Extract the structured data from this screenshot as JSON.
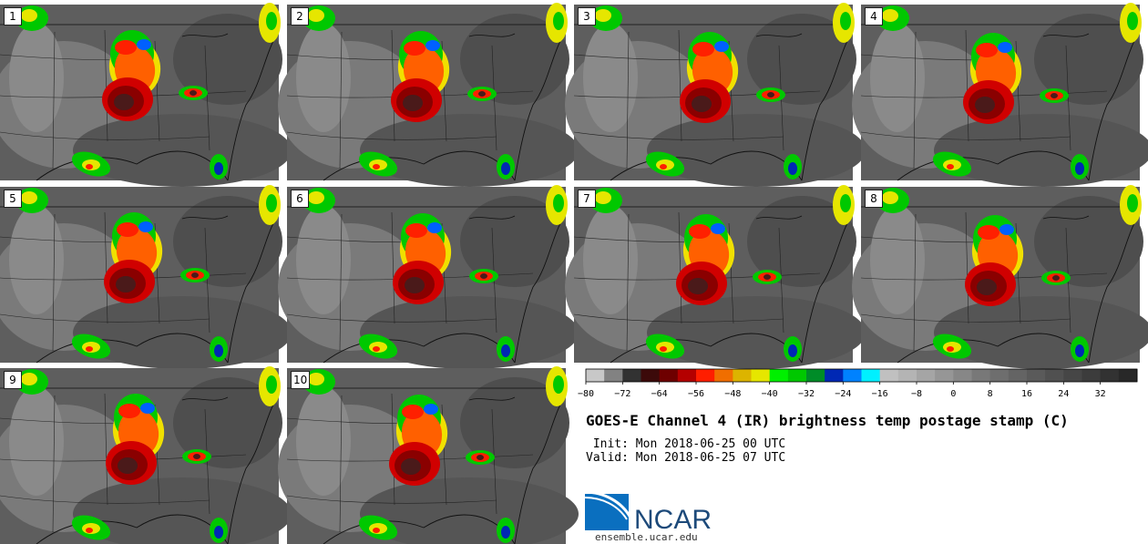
{
  "panels": [
    {
      "label": "1"
    },
    {
      "label": "2"
    },
    {
      "label": "3"
    },
    {
      "label": "4"
    },
    {
      "label": "5"
    },
    {
      "label": "6"
    },
    {
      "label": "7"
    },
    {
      "label": "8"
    },
    {
      "label": "9"
    },
    {
      "label": "10"
    }
  ],
  "colorbar": {
    "min": -80,
    "max": 40,
    "step": 4,
    "tick_labels": [
      "−80",
      "−72",
      "−64",
      "−56",
      "−48",
      "−40",
      "−32",
      "−24",
      "−16",
      "−8",
      "0",
      "8",
      "16",
      "24",
      "32"
    ],
    "tick_values": [
      -80,
      -72,
      -64,
      -56,
      -48,
      -40,
      -32,
      -24,
      -16,
      -8,
      0,
      8,
      16,
      24,
      32
    ],
    "colors": [
      "#c8c8c8",
      "#828282",
      "#323232",
      "#3c0a0a",
      "#6e0000",
      "#b40000",
      "#ff1e00",
      "#f06e00",
      "#dcb400",
      "#e6e600",
      "#00f000",
      "#00c800",
      "#008c28",
      "#0028b4",
      "#0082ff",
      "#00f0ff",
      "#c0c0c0",
      "#b4b4b4",
      "#a5a5a5",
      "#969696",
      "#878787",
      "#787878",
      "#6e6e6e",
      "#646464",
      "#5a5a5a",
      "#505050",
      "#464646",
      "#3c3c3c",
      "#323232",
      "#282828"
    ]
  },
  "title": "GOES-E Channel 4 (IR) brightness temp postage stamp (C)",
  "init_line": " Init: Mon 2018-06-25 00 UTC",
  "valid_line": "Valid: Mon 2018-06-25 07 UTC",
  "logo_text": "NCAR",
  "site": "ensemble.ucar.edu"
}
